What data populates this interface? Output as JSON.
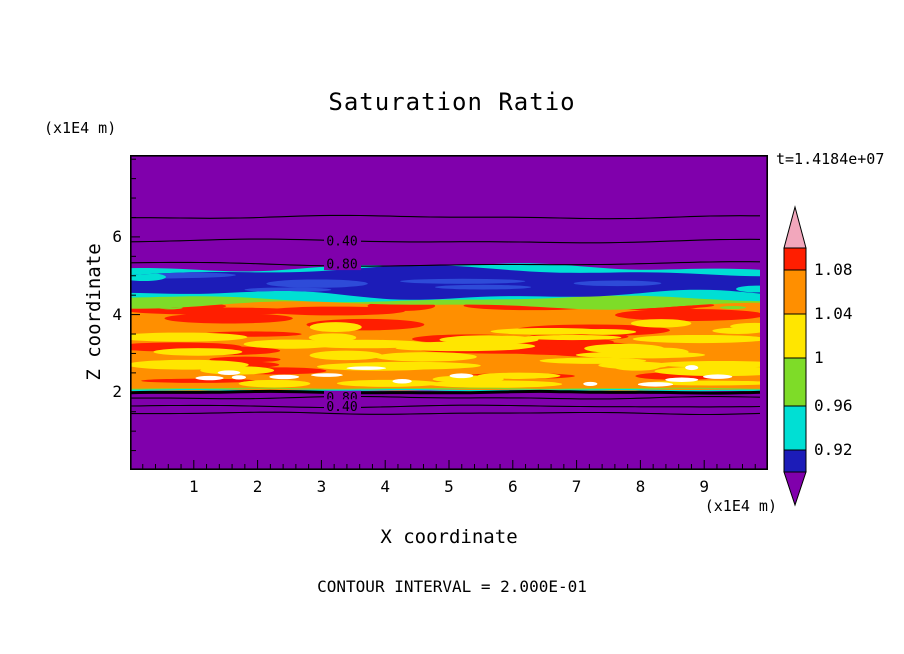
{
  "title": "Saturation Ratio",
  "time_label": "t=1.4184e+07",
  "contour_note": "CONTOUR INTERVAL = 2.000E-01",
  "x_axis": {
    "label": "X coordinate",
    "unit": "(x1E4 m)",
    "ticks": [
      1,
      2,
      3,
      4,
      5,
      6,
      7,
      8,
      9
    ]
  },
  "y_axis": {
    "label": "Z coordinate",
    "unit": "(x1E4 m)",
    "ticks": [
      2,
      4,
      6
    ]
  },
  "palette": {
    "purple": "#8000AC",
    "navy": "#1C1CB8",
    "blue": "#2E4BD8",
    "cyan": "#00DFD4",
    "green": "#7EDC28",
    "yellow": "#FFE600",
    "orange": "#FF8F00",
    "red": "#FF1E00",
    "pink": "#F2A7BC",
    "white": "#FFFFFF",
    "black": "#000000"
  },
  "colorbar": {
    "tick_labels": [
      "1.08",
      "1.04",
      "1",
      "0.96",
      "0.92"
    ],
    "segments_top_to_bottom": [
      "pink",
      "red",
      "orange",
      "yellow",
      "green",
      "cyan",
      "navy",
      "purple"
    ]
  },
  "chart_data": {
    "type": "heatmap",
    "title": "Saturation Ratio",
    "xlabel": "X coordinate (x1E4 m)",
    "ylabel": "Z coordinate (x1E4 m)",
    "xlim": [
      0,
      10
    ],
    "ylim": [
      0,
      8.1
    ],
    "x_ticks": [
      1,
      2,
      3,
      4,
      5,
      6,
      7,
      8,
      9
    ],
    "y_ticks": [
      2,
      4,
      6
    ],
    "time_annotation": "t=1.4184e+07",
    "contour_interval": 0.2,
    "colorbar_levels": [
      0.92,
      0.96,
      1.0,
      1.04,
      1.08
    ],
    "color_levels": [
      {
        "range": "> 1.08",
        "color_key": "red"
      },
      {
        "range": "1.04-1.08",
        "color_key": "orange"
      },
      {
        "range": "1.00-1.04",
        "color_key": "yellow"
      },
      {
        "range": "0.96-1.00",
        "color_key": "green"
      },
      {
        "range": "0.92-0.96",
        "color_key": "cyan"
      },
      {
        "range": "0.88-0.92",
        "color_key": "navy"
      },
      {
        "range": "< 0.88",
        "color_key": "purple"
      }
    ],
    "bands": [
      {
        "name": "cyan-fringe",
        "z": [
          4.2,
          5.22
        ],
        "value": "0.92-0.96",
        "color_key": "cyan"
      },
      {
        "name": "green-fringe",
        "z": [
          4.05,
          4.4
        ],
        "value": "0.96-1.00",
        "color_key": "green"
      },
      {
        "name": "subsaturated-layer",
        "z": [
          4.5,
          5.12
        ],
        "value": "0.88-0.92",
        "color_key": "navy"
      },
      {
        "name": "supersaturated-layer",
        "z": [
          2.03,
          4.24
        ],
        "value": "1.00-1.08",
        "color_key": "orange"
      }
    ],
    "interface_z": 2.0,
    "contours": [
      {
        "value": 0.2,
        "z": 6.51,
        "label": null
      },
      {
        "value": 0.4,
        "z": 5.89,
        "label": "0.40"
      },
      {
        "value": 0.8,
        "z": 5.3,
        "label": "0.80"
      },
      {
        "value": 0.8,
        "z": 1.86,
        "label": "0.80"
      },
      {
        "value": 0.4,
        "z": 1.64,
        "label": "0.40"
      },
      {
        "value": 0.2,
        "z": 1.46,
        "label": null
      }
    ]
  }
}
